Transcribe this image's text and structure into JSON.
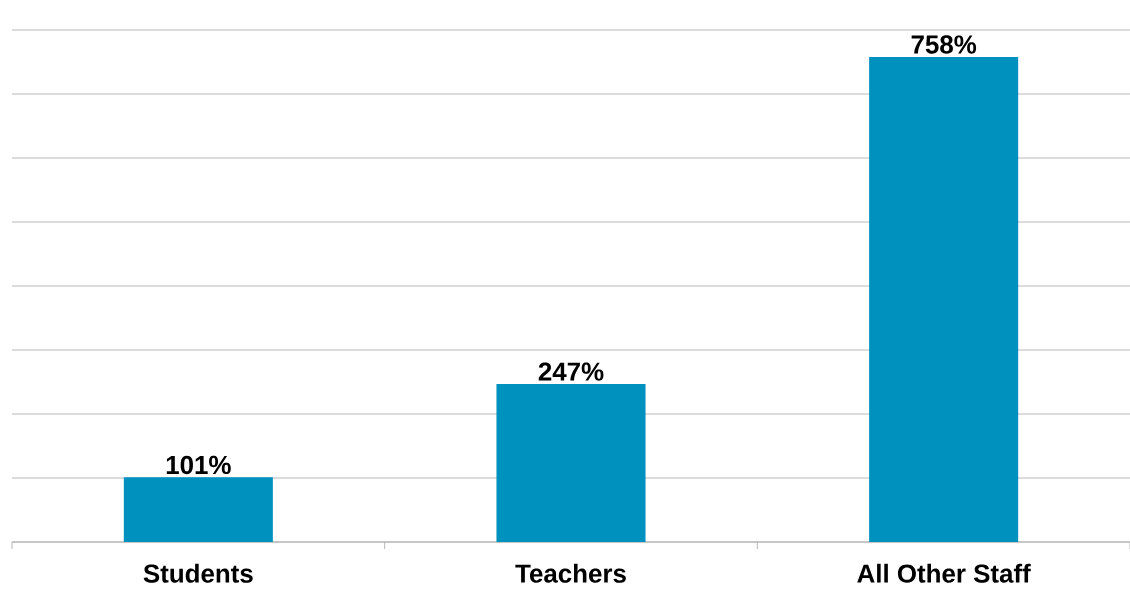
{
  "chart_data": {
    "type": "bar",
    "categories": [
      "Students",
      "Teachers",
      "All Other Staff"
    ],
    "values": [
      101,
      247,
      758
    ],
    "value_labels": [
      "101%",
      "247%",
      "758%"
    ],
    "color": "#0091bf",
    "ylim": [
      0,
      800
    ],
    "yticks": [
      {
        "value": 0,
        "label": null
      },
      {
        "value": 100,
        "label": null
      },
      {
        "value": 200,
        "label": null
      },
      {
        "value": 300,
        "label": null
      },
      {
        "value": 400,
        "label": null
      },
      {
        "value": 500,
        "label": null
      },
      {
        "value": 600,
        "label": null
      },
      {
        "value": 700,
        "label": null
      },
      {
        "value": 800,
        "label": null
      }
    ],
    "grid": "y"
  }
}
